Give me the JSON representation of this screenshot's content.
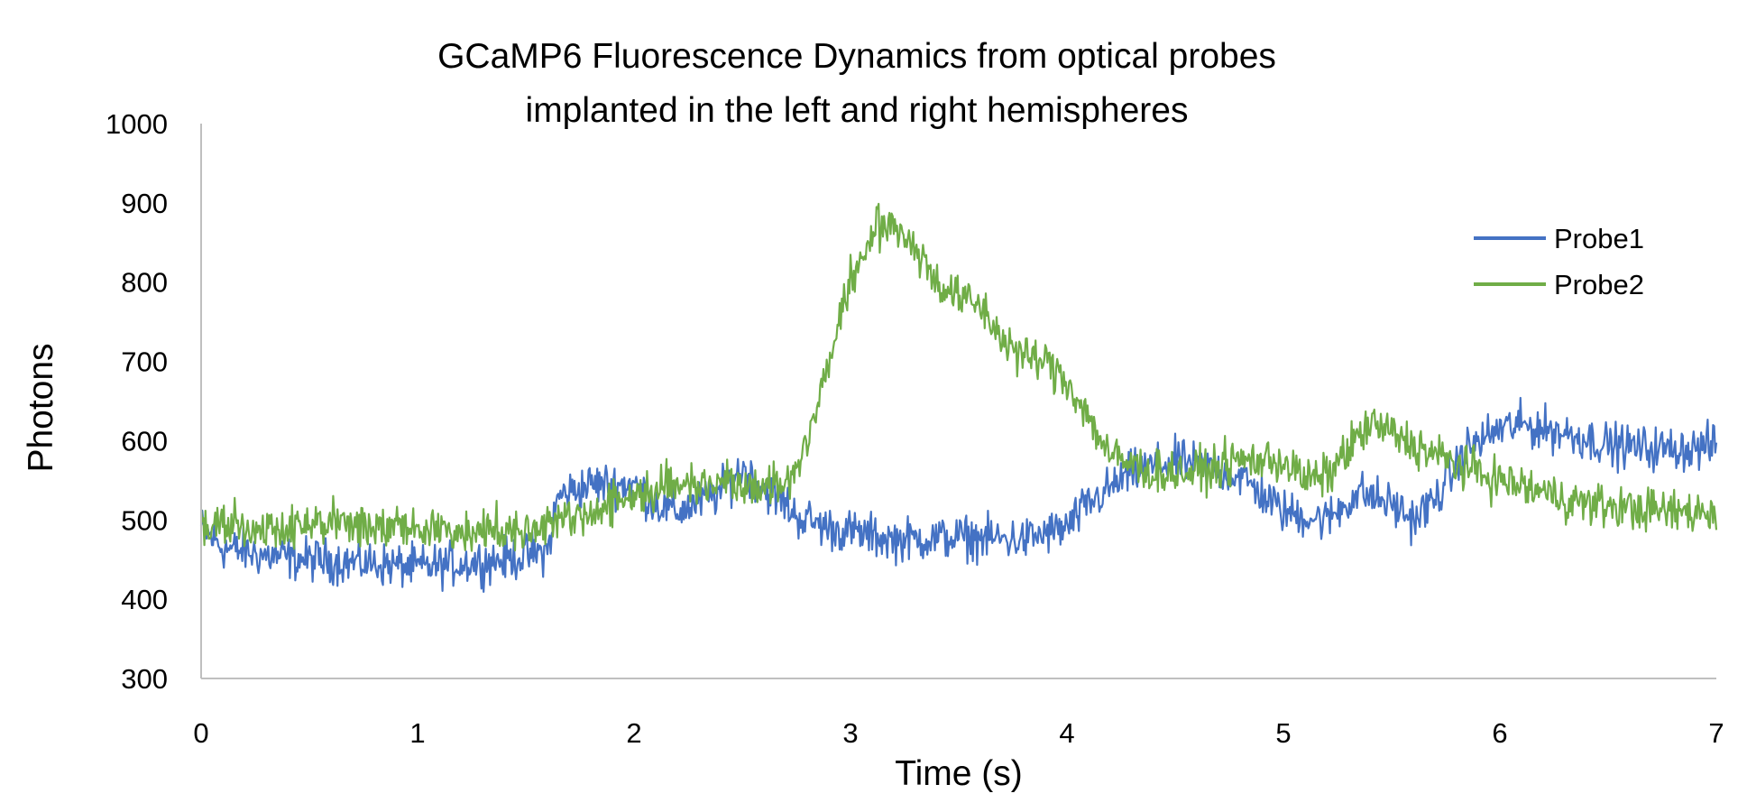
{
  "chart_data": {
    "type": "line",
    "title_line1": "GCaMP6 Fluorescence Dynamics from optical probes",
    "title_line2": "implanted in the left and right hemispheres",
    "xlabel": "Time (s)",
    "ylabel": "Photons",
    "xlim": [
      0,
      7
    ],
    "ylim": [
      300,
      1000
    ],
    "xticks": [
      "0",
      "1",
      "2",
      "3",
      "4",
      "5",
      "6",
      "7"
    ],
    "yticks": [
      "300",
      "400",
      "500",
      "600",
      "700",
      "800",
      "900",
      "1000"
    ],
    "grid": false,
    "legend_position": "right",
    "series": [
      {
        "name": "Probe1",
        "color": "#4472C4",
        "noise_amplitude": 30,
        "x": [
          0,
          0.1,
          0.3,
          0.5,
          0.8,
          1.0,
          1.2,
          1.4,
          1.6,
          1.65,
          1.8,
          2.0,
          2.1,
          2.2,
          2.4,
          2.5,
          2.6,
          2.7,
          2.75,
          2.9,
          3.2,
          3.5,
          3.8,
          4.0,
          4.1,
          4.3,
          4.5,
          4.8,
          5.0,
          5.2,
          5.35,
          5.5,
          5.6,
          5.7,
          5.85,
          6.0,
          6.1,
          6.3,
          6.5,
          6.7,
          6.9,
          7.0
        ],
        "values": [
          490,
          465,
          455,
          450,
          445,
          440,
          445,
          450,
          460,
          530,
          545,
          545,
          520,
          510,
          535,
          565,
          540,
          520,
          505,
          490,
          475,
          478,
          475,
          490,
          520,
          560,
          575,
          555,
          510,
          500,
          535,
          520,
          500,
          525,
          590,
          615,
          620,
          610,
          595,
          590,
          590,
          595
        ]
      },
      {
        "name": "Probe2",
        "color": "#70AD47",
        "noise_amplitude": 30,
        "x": [
          0,
          0.3,
          0.6,
          0.9,
          1.2,
          1.5,
          1.8,
          2.1,
          2.4,
          2.6,
          2.7,
          2.8,
          2.9,
          3.0,
          3.1,
          3.2,
          3.3,
          3.4,
          3.5,
          3.6,
          3.7,
          3.8,
          3.9,
          4.0,
          4.1,
          4.2,
          4.4,
          4.6,
          4.8,
          5.0,
          5.1,
          5.2,
          5.3,
          5.4,
          5.5,
          5.6,
          5.8,
          6.0,
          6.2,
          6.4,
          6.6,
          6.8,
          7.0
        ],
        "values": [
          495,
          490,
          495,
          490,
          485,
          490,
          510,
          540,
          550,
          545,
          540,
          600,
          700,
          800,
          860,
          875,
          845,
          800,
          780,
          770,
          730,
          705,
          700,
          675,
          630,
          580,
          560,
          560,
          575,
          575,
          550,
          555,
          590,
          620,
          610,
          595,
          570,
          550,
          535,
          520,
          515,
          510,
          510
        ]
      }
    ]
  }
}
